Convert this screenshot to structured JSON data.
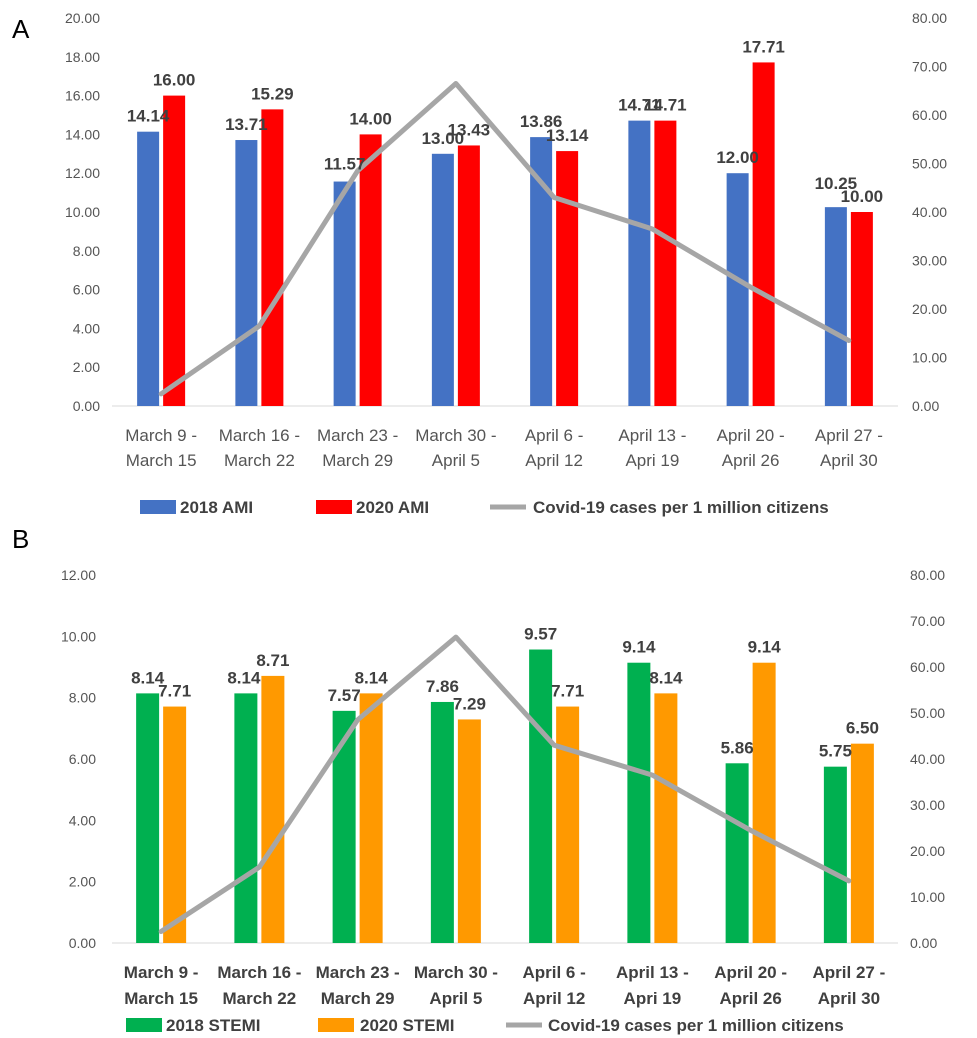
{
  "chart_data": [
    {
      "panel": "A",
      "type": "bar",
      "categories": [
        [
          "March 9 -",
          "March 15"
        ],
        [
          "March 16 -",
          "March 22"
        ],
        [
          "March 23 -",
          "March 29"
        ],
        [
          "March 30 -",
          "April 5"
        ],
        [
          "April 6 -",
          "April 12"
        ],
        [
          "April 13 -",
          "Apri 19"
        ],
        [
          "April 20 -",
          "April 26"
        ],
        [
          "April 27 -",
          "April 30"
        ]
      ],
      "series": [
        {
          "name": "2018 AMI",
          "kind": "bar",
          "color": "#4472C4",
          "values": [
            14.14,
            13.71,
            11.57,
            13.0,
            13.86,
            14.71,
            12.0,
            10.25
          ]
        },
        {
          "name": "2020 AMI",
          "kind": "bar",
          "color": "#FF0000",
          "values": [
            16.0,
            15.29,
            14.0,
            13.43,
            13.14,
            14.71,
            17.71,
            10.0
          ]
        },
        {
          "name": "Covid-19 cases per 1 million citizens",
          "kind": "line",
          "axis": "right",
          "color": "#A6A6A6",
          "values": [
            2.5,
            16.5,
            48.5,
            66.5,
            43.0,
            36.5,
            24.5,
            13.5
          ]
        }
      ],
      "data_labels": [
        [
          "14.14",
          "13.71",
          "11.57",
          "13.00",
          "13.86",
          "14.71",
          "12.00",
          "10.25"
        ],
        [
          "16.00",
          "15.29",
          "14.00",
          "13.43",
          "13.14",
          "14.71",
          "17.71",
          "10.00"
        ]
      ],
      "ylim": [
        0,
        20
      ],
      "yticks": [
        "0.00",
        "2.00",
        "4.00",
        "6.00",
        "8.00",
        "10.00",
        "12.00",
        "14.00",
        "16.00",
        "18.00",
        "20.00"
      ],
      "y2lim": [
        0,
        80
      ],
      "y2ticks": [
        "0.00",
        "10.00",
        "20.00",
        "30.00",
        "40.00",
        "50.00",
        "60.00",
        "70.00",
        "80.00"
      ],
      "grid": false,
      "legend": "bottom",
      "xlabel": "",
      "ylabel": ""
    },
    {
      "panel": "B",
      "type": "bar",
      "categories": [
        [
          "March 9 -",
          "March 15"
        ],
        [
          "March 16 -",
          "March 22"
        ],
        [
          "March 23 -",
          "March 29"
        ],
        [
          "March 30 -",
          "April 5"
        ],
        [
          "April 6 -",
          "April 12"
        ],
        [
          "April 13 -",
          "Apri 19"
        ],
        [
          "April 20 -",
          "April 26"
        ],
        [
          "April 27 -",
          "April 30"
        ]
      ],
      "series": [
        {
          "name": "2018 STEMI",
          "kind": "bar",
          "color": "#00B050",
          "values": [
            8.14,
            8.14,
            7.57,
            7.86,
            9.57,
            9.14,
            5.86,
            5.75
          ]
        },
        {
          "name": "2020 STEMI",
          "kind": "bar",
          "color": "#FF9900",
          "values": [
            7.71,
            8.71,
            8.14,
            7.29,
            7.71,
            8.14,
            9.14,
            6.5
          ]
        },
        {
          "name": "Covid-19 cases per 1 million citizens",
          "kind": "line",
          "axis": "right",
          "color": "#A6A6A6",
          "values": [
            2.5,
            16.5,
            48.5,
            66.5,
            43.0,
            36.5,
            24.5,
            13.5
          ]
        }
      ],
      "data_labels": [
        [
          "8.14",
          "8.14",
          "7.57",
          "7.86",
          "9.57",
          "9.14",
          "5.86",
          "5.75"
        ],
        [
          "7.71",
          "8.71",
          "8.14",
          "7.29",
          "7.71",
          "8.14",
          "9.14",
          "6.50"
        ]
      ],
      "ylim": [
        0,
        12
      ],
      "yticks": [
        "0.00",
        "2.00",
        "4.00",
        "6.00",
        "8.00",
        "10.00",
        "12.00"
      ],
      "y2lim": [
        0,
        80
      ],
      "y2ticks": [
        "0.00",
        "10.00",
        "20.00",
        "30.00",
        "40.00",
        "50.00",
        "60.00",
        "70.00",
        "80.00"
      ],
      "grid": false,
      "legend": "bottom",
      "xlabel": "",
      "ylabel": ""
    }
  ]
}
